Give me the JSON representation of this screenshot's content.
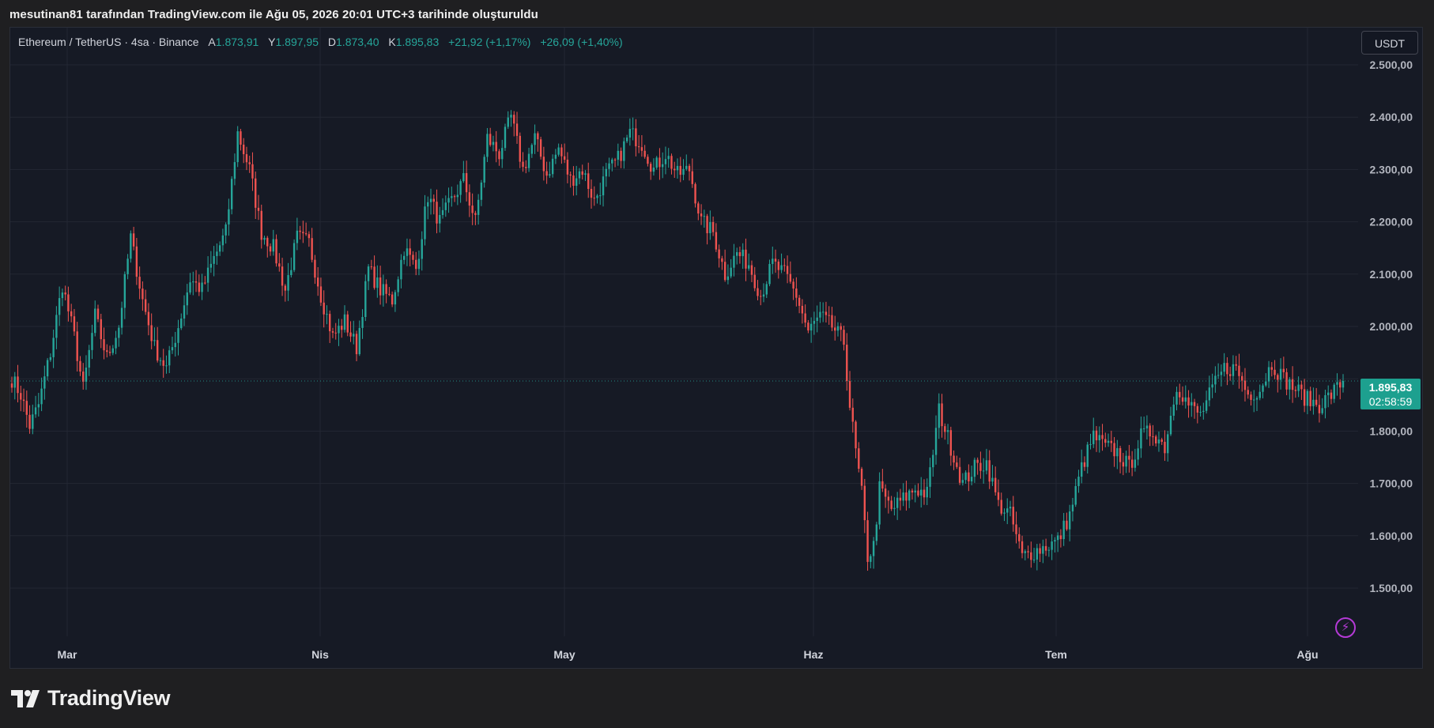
{
  "caption": "mesutinan81 tarafından TradingView.com ile Ağu 05, 2026 20:01 UTC+3 tarihinde oluşturuldu",
  "symbol": {
    "title": "Ethereum / TetherUS · 4sa · Binance",
    "open_label": "A",
    "open": "1.873,91",
    "high_label": "Y",
    "high": "1.897,95",
    "low_label": "D",
    "low": "1.873,40",
    "close_label": "K",
    "close": "1.895,83",
    "change": "+21,92 (+1,17%)",
    "change2": "+26,09 (+1,40%)"
  },
  "currency_button": "USDT",
  "last_price": {
    "price": "1.895,83",
    "countdown": "02:58:59"
  },
  "lightning_icon": "lightning-icon",
  "brand": "TradingView",
  "colors": {
    "up": "#26a69a",
    "down": "#ef5350",
    "badge": "#1da08f",
    "background": "#161a25"
  },
  "chart_data": {
    "type": "candlestick",
    "y_ticks": [
      "2.500,00",
      "2.400,00",
      "2.300,00",
      "2.200,00",
      "2.100,00",
      "2.000,00",
      "1.900,00",
      "1.800,00",
      "1.700,00",
      "1.600,00",
      "1.500,00"
    ],
    "y_tick_values": [
      2500,
      2400,
      2300,
      2200,
      2100,
      2000,
      1900,
      1800,
      1700,
      1600,
      1500
    ],
    "hidden_tick": "1.900,00",
    "x_ticks": [
      "Mar",
      "Nis",
      "May",
      "Haz",
      "Tem",
      "Ağu"
    ],
    "ylim": [
      1405,
      2560
    ],
    "last_price_value": 1895.83,
    "grid": true,
    "anchors": [
      [
        0,
        1900
      ],
      [
        3,
        1870
      ],
      [
        6,
        1810
      ],
      [
        9,
        1850
      ],
      [
        13,
        1950
      ],
      [
        17,
        2080
      ],
      [
        21,
        1980
      ],
      [
        24,
        1880
      ],
      [
        28,
        2020
      ],
      [
        32,
        1940
      ],
      [
        36,
        2000
      ],
      [
        40,
        2170
      ],
      [
        44,
        2050
      ],
      [
        48,
        1960
      ],
      [
        52,
        1920
      ],
      [
        56,
        2000
      ],
      [
        60,
        2090
      ],
      [
        64,
        2070
      ],
      [
        68,
        2130
      ],
      [
        72,
        2180
      ],
      [
        76,
        2370
      ],
      [
        80,
        2300
      ],
      [
        84,
        2180
      ],
      [
        88,
        2150
      ],
      [
        92,
        2070
      ],
      [
        96,
        2170
      ],
      [
        100,
        2160
      ],
      [
        104,
        2060
      ],
      [
        108,
        1980
      ],
      [
        112,
        2010
      ],
      [
        116,
        1960
      ],
      [
        120,
        2110
      ],
      [
        124,
        2070
      ],
      [
        128,
        2050
      ],
      [
        132,
        2150
      ],
      [
        136,
        2110
      ],
      [
        140,
        2250
      ],
      [
        144,
        2200
      ],
      [
        148,
        2240
      ],
      [
        152,
        2280
      ],
      [
        156,
        2200
      ],
      [
        160,
        2360
      ],
      [
        164,
        2330
      ],
      [
        168,
        2400
      ],
      [
        172,
        2300
      ],
      [
        176,
        2360
      ],
      [
        180,
        2290
      ],
      [
        184,
        2340
      ],
      [
        188,
        2280
      ],
      [
        192,
        2300
      ],
      [
        196,
        2240
      ],
      [
        200,
        2290
      ],
      [
        204,
        2320
      ],
      [
        208,
        2370
      ],
      [
        212,
        2350
      ],
      [
        216,
        2300
      ],
      [
        220,
        2330
      ],
      [
        224,
        2290
      ],
      [
        228,
        2300
      ],
      [
        232,
        2200
      ],
      [
        236,
        2180
      ],
      [
        240,
        2100
      ],
      [
        244,
        2140
      ],
      [
        248,
        2120
      ],
      [
        252,
        2060
      ],
      [
        256,
        2120
      ],
      [
        260,
        2100
      ],
      [
        264,
        2060
      ],
      [
        268,
        1990
      ],
      [
        272,
        2020
      ],
      [
        276,
        2000
      ],
      [
        280,
        1970
      ],
      [
        282,
        1850
      ],
      [
        284,
        1760
      ],
      [
        286,
        1680
      ],
      [
        288,
        1560
      ],
      [
        290,
        1580
      ],
      [
        292,
        1690
      ],
      [
        296,
        1650
      ],
      [
        300,
        1670
      ],
      [
        304,
        1690
      ],
      [
        308,
        1680
      ],
      [
        312,
        1840
      ],
      [
        316,
        1770
      ],
      [
        320,
        1700
      ],
      [
        324,
        1730
      ],
      [
        328,
        1740
      ],
      [
        332,
        1660
      ],
      [
        336,
        1640
      ],
      [
        340,
        1560
      ],
      [
        344,
        1570
      ],
      [
        348,
        1580
      ],
      [
        352,
        1590
      ],
      [
        356,
        1640
      ],
      [
        360,
        1730
      ],
      [
        364,
        1790
      ],
      [
        368,
        1770
      ],
      [
        372,
        1760
      ],
      [
        376,
        1730
      ],
      [
        380,
        1790
      ],
      [
        384,
        1800
      ],
      [
        388,
        1770
      ],
      [
        392,
        1890
      ],
      [
        396,
        1850
      ],
      [
        400,
        1830
      ],
      [
        404,
        1880
      ],
      [
        408,
        1920
      ],
      [
        412,
        1920
      ],
      [
        416,
        1870
      ],
      [
        420,
        1880
      ],
      [
        424,
        1930
      ],
      [
        428,
        1900
      ],
      [
        432,
        1880
      ],
      [
        436,
        1860
      ],
      [
        440,
        1850
      ],
      [
        444,
        1870
      ],
      [
        448,
        1896
      ]
    ]
  }
}
